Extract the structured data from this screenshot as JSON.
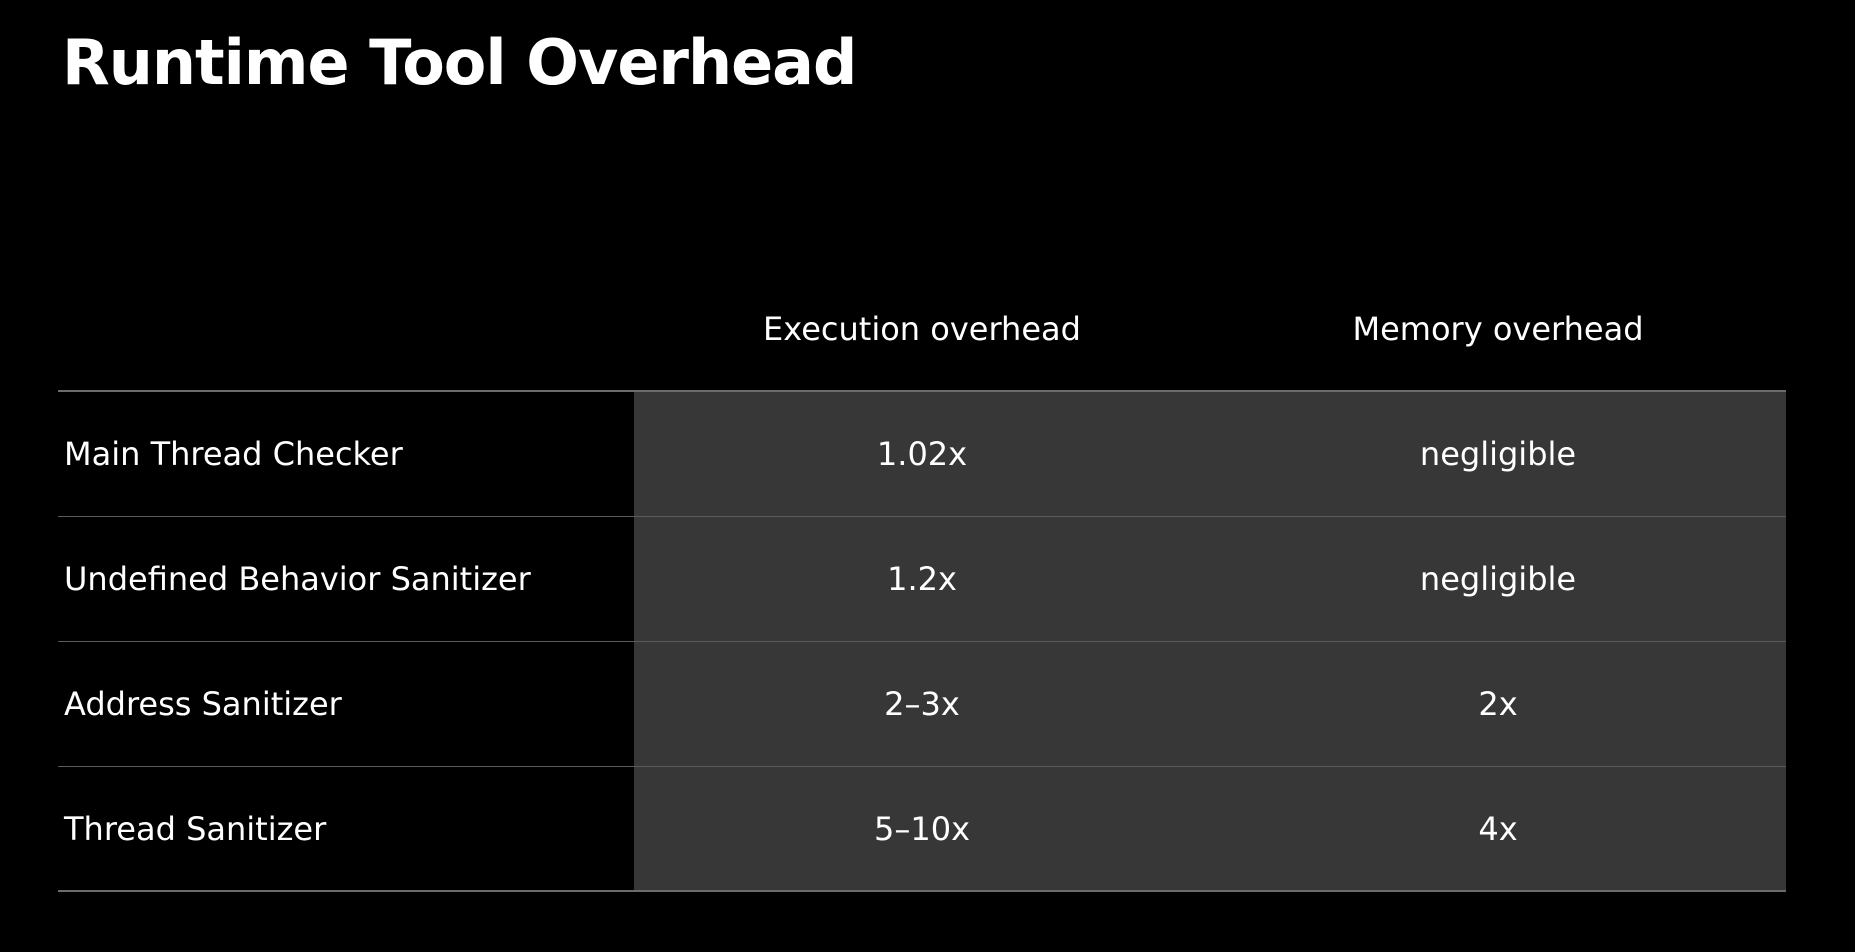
{
  "title": "Runtime Tool Overhead",
  "table": {
    "headers": {
      "tool": "",
      "execution": "Execution overhead",
      "memory": "Memory overhead"
    },
    "rows": [
      {
        "tool": "Main Thread Checker",
        "execution": "1.02x",
        "memory": "negligible"
      },
      {
        "tool": "Undefined Behavior Sanitizer",
        "execution": "1.2x",
        "memory": "negligible"
      },
      {
        "tool": "Address Sanitizer",
        "execution": "2–3x",
        "memory": "2x"
      },
      {
        "tool": "Thread Sanitizer",
        "execution": "5–10x",
        "memory": "4x"
      }
    ]
  },
  "colors": {
    "background": "#000000",
    "shaded_columns": "#373737",
    "text": "#ffffff",
    "rule": "#6b6b6b"
  }
}
